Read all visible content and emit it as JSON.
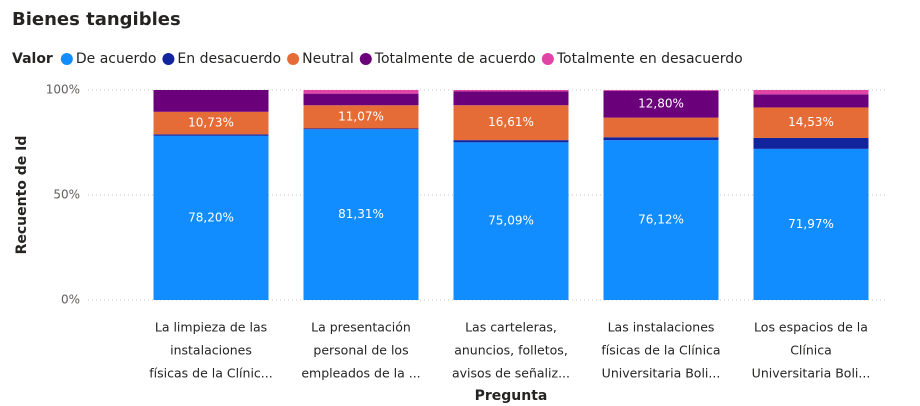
{
  "chart_data": {
    "type": "stacked_bar_100",
    "title": "Bienes tangibles",
    "legend_title": "Valor",
    "x_label": "Pregunta",
    "y_label": "Recuento de Id",
    "categories": [
      [
        "La limpieza de las",
        "instalaciones",
        "físicas de la Clínic..."
      ],
      [
        "La presentación",
        "personal de los",
        "empleados de la ..."
      ],
      [
        "Las carteleras,",
        "anuncios, folletos,",
        "avisos de señaliz..."
      ],
      [
        "Las instalaciones",
        "físicas de la Clínica",
        "Universitaria Boli..."
      ],
      [
        "Los espacios de la",
        "Clínica",
        "Universitaria Boli..."
      ]
    ],
    "series": [
      {
        "name": "De acuerdo",
        "color": "#118dff",
        "values": [
          78.2,
          81.31,
          75.09,
          76.12,
          71.97
        ],
        "value_labels": [
          "78,20%",
          "81,31%",
          "75,09%",
          "76,12%",
          "71,97%"
        ]
      },
      {
        "name": "En desacuerdo",
        "color": "#12239e",
        "values": [
          0.69,
          0.35,
          1.04,
          1.38,
          5.19
        ],
        "value_labels": [
          null,
          null,
          null,
          null,
          null
        ]
      },
      {
        "name": "Neutral",
        "color": "#e66c37",
        "values": [
          10.73,
          11.07,
          16.61,
          9.35,
          14.53
        ],
        "value_labels": [
          "10,73%",
          "11,07%",
          "16,61%",
          null,
          "14,53%"
        ]
      },
      {
        "name": "Totalmente de acuerdo",
        "color": "#6b007b",
        "values": [
          10.38,
          5.54,
          6.57,
          12.8,
          6.23
        ],
        "value_labels": [
          null,
          null,
          null,
          "12,80%",
          null
        ]
      },
      {
        "name": "Totalmente en desacuerdo",
        "color": "#e044a7",
        "values": [
          0,
          1.73,
          0.69,
          0.35,
          2.08
        ],
        "value_labels": [
          null,
          null,
          null,
          null,
          null
        ]
      }
    ],
    "ylim": [
      0,
      100
    ],
    "yticks": [
      {
        "value": 0,
        "label": "0%"
      },
      {
        "value": 50,
        "label": "50%"
      },
      {
        "value": 100,
        "label": "100%"
      }
    ],
    "grid": true
  }
}
